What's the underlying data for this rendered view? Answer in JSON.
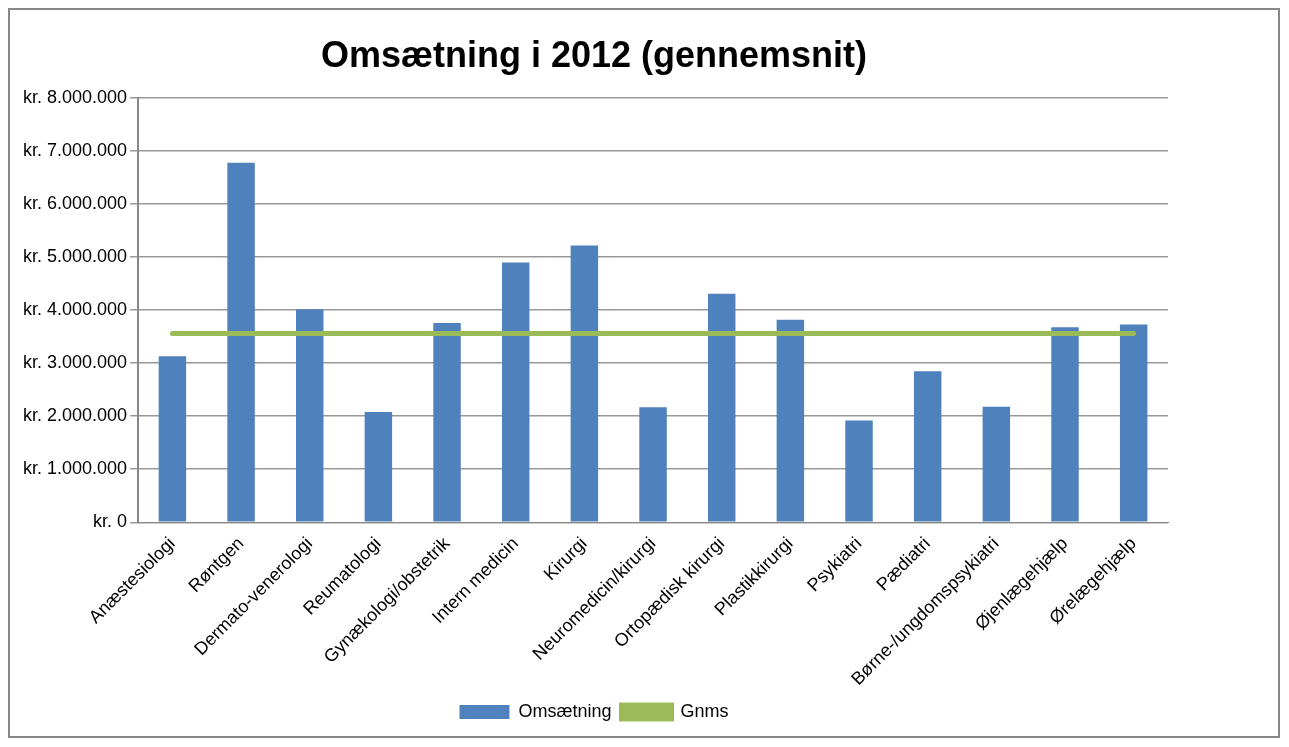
{
  "chart_data": {
    "type": "bar",
    "title": "Omsætning i 2012 (gennemsnit)",
    "categories": [
      "Anæstesiologi",
      "Røntgen",
      "Dermato-venerologi",
      "Reumatologi",
      "Gynækologi/obstetrik",
      "Intern medicin",
      "Kirurgi",
      "Neuromedicin/kirurgi",
      "Ortopædisk kirurgi",
      "Plastikkirurgi",
      "Psykiatri",
      "Pædiatri",
      "Børne-/ungdomspsykiatri",
      "Øjenlægehjælp",
      "Ørelægehjælp"
    ],
    "series": [
      {
        "name": "Omsætning",
        "color": "#4f81bd",
        "values": [
          3130000,
          6780000,
          4020000,
          2080000,
          3760000,
          4900000,
          5220000,
          2170000,
          4310000,
          3820000,
          1920000,
          2850000,
          2180000,
          3680000,
          3730000
        ]
      },
      {
        "name": "Gnms",
        "type": "line",
        "color": "#9bbb59",
        "values": [
          3560000,
          3560000,
          3560000,
          3560000,
          3560000,
          3560000,
          3560000,
          3560000,
          3560000,
          3560000,
          3560000,
          3560000,
          3560000,
          3560000,
          3560000
        ]
      }
    ],
    "ylim": [
      0,
      8000000
    ],
    "yticks": [
      {
        "value": 0,
        "label": "kr. 0"
      },
      {
        "value": 1000000,
        "label": "kr. 1.000.000"
      },
      {
        "value": 2000000,
        "label": "kr. 2.000.000"
      },
      {
        "value": 3000000,
        "label": "kr. 3.000.000"
      },
      {
        "value": 4000000,
        "label": "kr. 4.000.000"
      },
      {
        "value": 5000000,
        "label": "kr. 5.000.000"
      },
      {
        "value": 6000000,
        "label": "kr. 6.000.000"
      },
      {
        "value": 7000000,
        "label": "kr. 7.000.000"
      },
      {
        "value": 8000000,
        "label": "kr. 8.000.000"
      }
    ],
    "grid": "y",
    "legend": "bottom",
    "marker": "none",
    "line_style": "solid"
  }
}
